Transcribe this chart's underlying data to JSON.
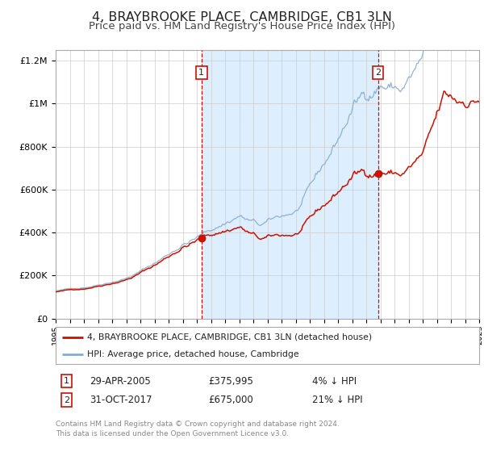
{
  "title": "4, BRAYBROOKE PLACE, CAMBRIDGE, CB1 3LN",
  "subtitle": "Price paid vs. HM Land Registry's House Price Index (HPI)",
  "title_fontsize": 11.5,
  "subtitle_fontsize": 9.5,
  "background_color": "#ffffff",
  "plot_bg_color": "#ffffff",
  "shaded_region_color": "#ddeeff",
  "grid_color": "#cccccc",
  "hpi_line_color": "#88aacc",
  "price_line_color": "#cc1100",
  "sale1_x": 2005.33,
  "sale1_y": 375995,
  "sale1_label": "1",
  "sale2_x": 2017.83,
  "sale2_y": 675000,
  "sale2_label": "2",
  "ylim": [
    0,
    1250000
  ],
  "xlim_start": 1995,
  "xlim_end": 2025,
  "footer_text": "Contains HM Land Registry data © Crown copyright and database right 2024.\nThis data is licensed under the Open Government Licence v3.0.",
  "legend1_label": "4, BRAYBROOKE PLACE, CAMBRIDGE, CB1 3LN (detached house)",
  "legend2_label": "HPI: Average price, detached house, Cambridge",
  "table_row1": [
    "1",
    "29-APR-2005",
    "£375,995",
    "4% ↓ HPI"
  ],
  "table_row2": [
    "2",
    "31-OCT-2017",
    "£675,000",
    "21% ↓ HPI"
  ]
}
